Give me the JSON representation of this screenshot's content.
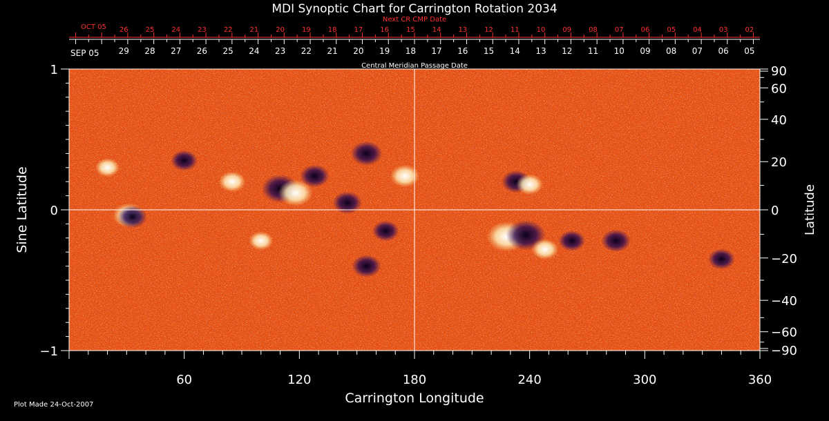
{
  "chart_data": {
    "type": "heatmap",
    "title": "MDI Synoptic Chart for Carrington Rotation 2034",
    "xlabel": "Carrington Longitude",
    "ylabel_left": "Sine Latitude",
    "ylabel_right": "Latitude",
    "xlim": [
      0,
      360
    ],
    "ylim": [
      -1,
      1
    ],
    "x_ticks": [
      60,
      120,
      180,
      240,
      300,
      360
    ],
    "y_ticks_left": [
      {
        "value": 1,
        "label": "1"
      },
      {
        "value": 0,
        "label": "0"
      },
      {
        "value": -1,
        "label": "−1"
      }
    ],
    "y_ticks_right": [
      {
        "deg": 90,
        "label": "90"
      },
      {
        "deg": 60,
        "label": "60"
      },
      {
        "deg": 40,
        "label": "40"
      },
      {
        "deg": 20,
        "label": "20"
      },
      {
        "deg": 0,
        "label": "0"
      },
      {
        "deg": -20,
        "label": "−20"
      },
      {
        "deg": -40,
        "label": "−40"
      },
      {
        "deg": -60,
        "label": "−60"
      },
      {
        "deg": -90,
        "label": "−90"
      }
    ],
    "top_axis_next": {
      "label": "Next CR CMP Date",
      "start_label": "OCT 05",
      "day_labels": [
        "26",
        "25",
        "24",
        "23",
        "22",
        "21",
        "20",
        "19",
        "18",
        "17",
        "16",
        "15",
        "14",
        "13",
        "12",
        "11",
        "10",
        "09",
        "08",
        "07",
        "06",
        "05",
        "04",
        "03",
        "02"
      ]
    },
    "top_axis_cmp": {
      "label": "Central Meridian Passage Date",
      "start_label": "SEP 05",
      "day_labels": [
        "29",
        "28",
        "27",
        "26",
        "25",
        "24",
        "23",
        "22",
        "21",
        "20",
        "19",
        "18",
        "17",
        "16",
        "15",
        "14",
        "13",
        "12",
        "11",
        "10",
        "09",
        "08",
        "07",
        "06",
        "05"
      ]
    },
    "reference_lines": {
      "x": [
        180
      ],
      "y": [
        0
      ]
    },
    "footer": "Plot Made 24-Oct-2007",
    "colors": {
      "background": "#000000",
      "field_base": "#e85010",
      "positive_polarity": "#ffffff",
      "negative_polarity": "#1a0840",
      "next_axis_text": "#ff3030"
    },
    "active_regions": [
      {
        "lon": 110,
        "sinlat": 0.15,
        "polarity": "negative",
        "strength": 0.9
      },
      {
        "lon": 118,
        "sinlat": 0.12,
        "polarity": "positive",
        "strength": 0.8
      },
      {
        "lon": 128,
        "sinlat": 0.24,
        "polarity": "negative",
        "strength": 0.6
      },
      {
        "lon": 155,
        "sinlat": 0.4,
        "polarity": "negative",
        "strength": 0.7
      },
      {
        "lon": 175,
        "sinlat": 0.24,
        "polarity": "positive",
        "strength": 0.6
      },
      {
        "lon": 85,
        "sinlat": 0.2,
        "polarity": "positive",
        "strength": 0.5
      },
      {
        "lon": 145,
        "sinlat": 0.05,
        "polarity": "negative",
        "strength": 0.6
      },
      {
        "lon": 31,
        "sinlat": -0.04,
        "polarity": "positive",
        "strength": 0.7
      },
      {
        "lon": 33,
        "sinlat": -0.05,
        "polarity": "negative",
        "strength": 0.6
      },
      {
        "lon": 228,
        "sinlat": -0.19,
        "polarity": "positive",
        "strength": 1.0
      },
      {
        "lon": 238,
        "sinlat": -0.18,
        "polarity": "negative",
        "strength": 1.0
      },
      {
        "lon": 248,
        "sinlat": -0.28,
        "polarity": "positive",
        "strength": 0.5
      },
      {
        "lon": 233,
        "sinlat": 0.2,
        "polarity": "negative",
        "strength": 0.6
      },
      {
        "lon": 240,
        "sinlat": 0.18,
        "polarity": "positive",
        "strength": 0.5
      },
      {
        "lon": 285,
        "sinlat": -0.22,
        "polarity": "negative",
        "strength": 0.6
      },
      {
        "lon": 262,
        "sinlat": -0.22,
        "polarity": "negative",
        "strength": 0.5
      },
      {
        "lon": 155,
        "sinlat": -0.4,
        "polarity": "negative",
        "strength": 0.6
      },
      {
        "lon": 165,
        "sinlat": -0.15,
        "polarity": "negative",
        "strength": 0.5
      },
      {
        "lon": 340,
        "sinlat": -0.35,
        "polarity": "negative",
        "strength": 0.5
      },
      {
        "lon": 100,
        "sinlat": -0.22,
        "polarity": "positive",
        "strength": 0.4
      },
      {
        "lon": 60,
        "sinlat": 0.35,
        "polarity": "negative",
        "strength": 0.5
      },
      {
        "lon": 20,
        "sinlat": 0.3,
        "polarity": "positive",
        "strength": 0.4
      }
    ]
  }
}
